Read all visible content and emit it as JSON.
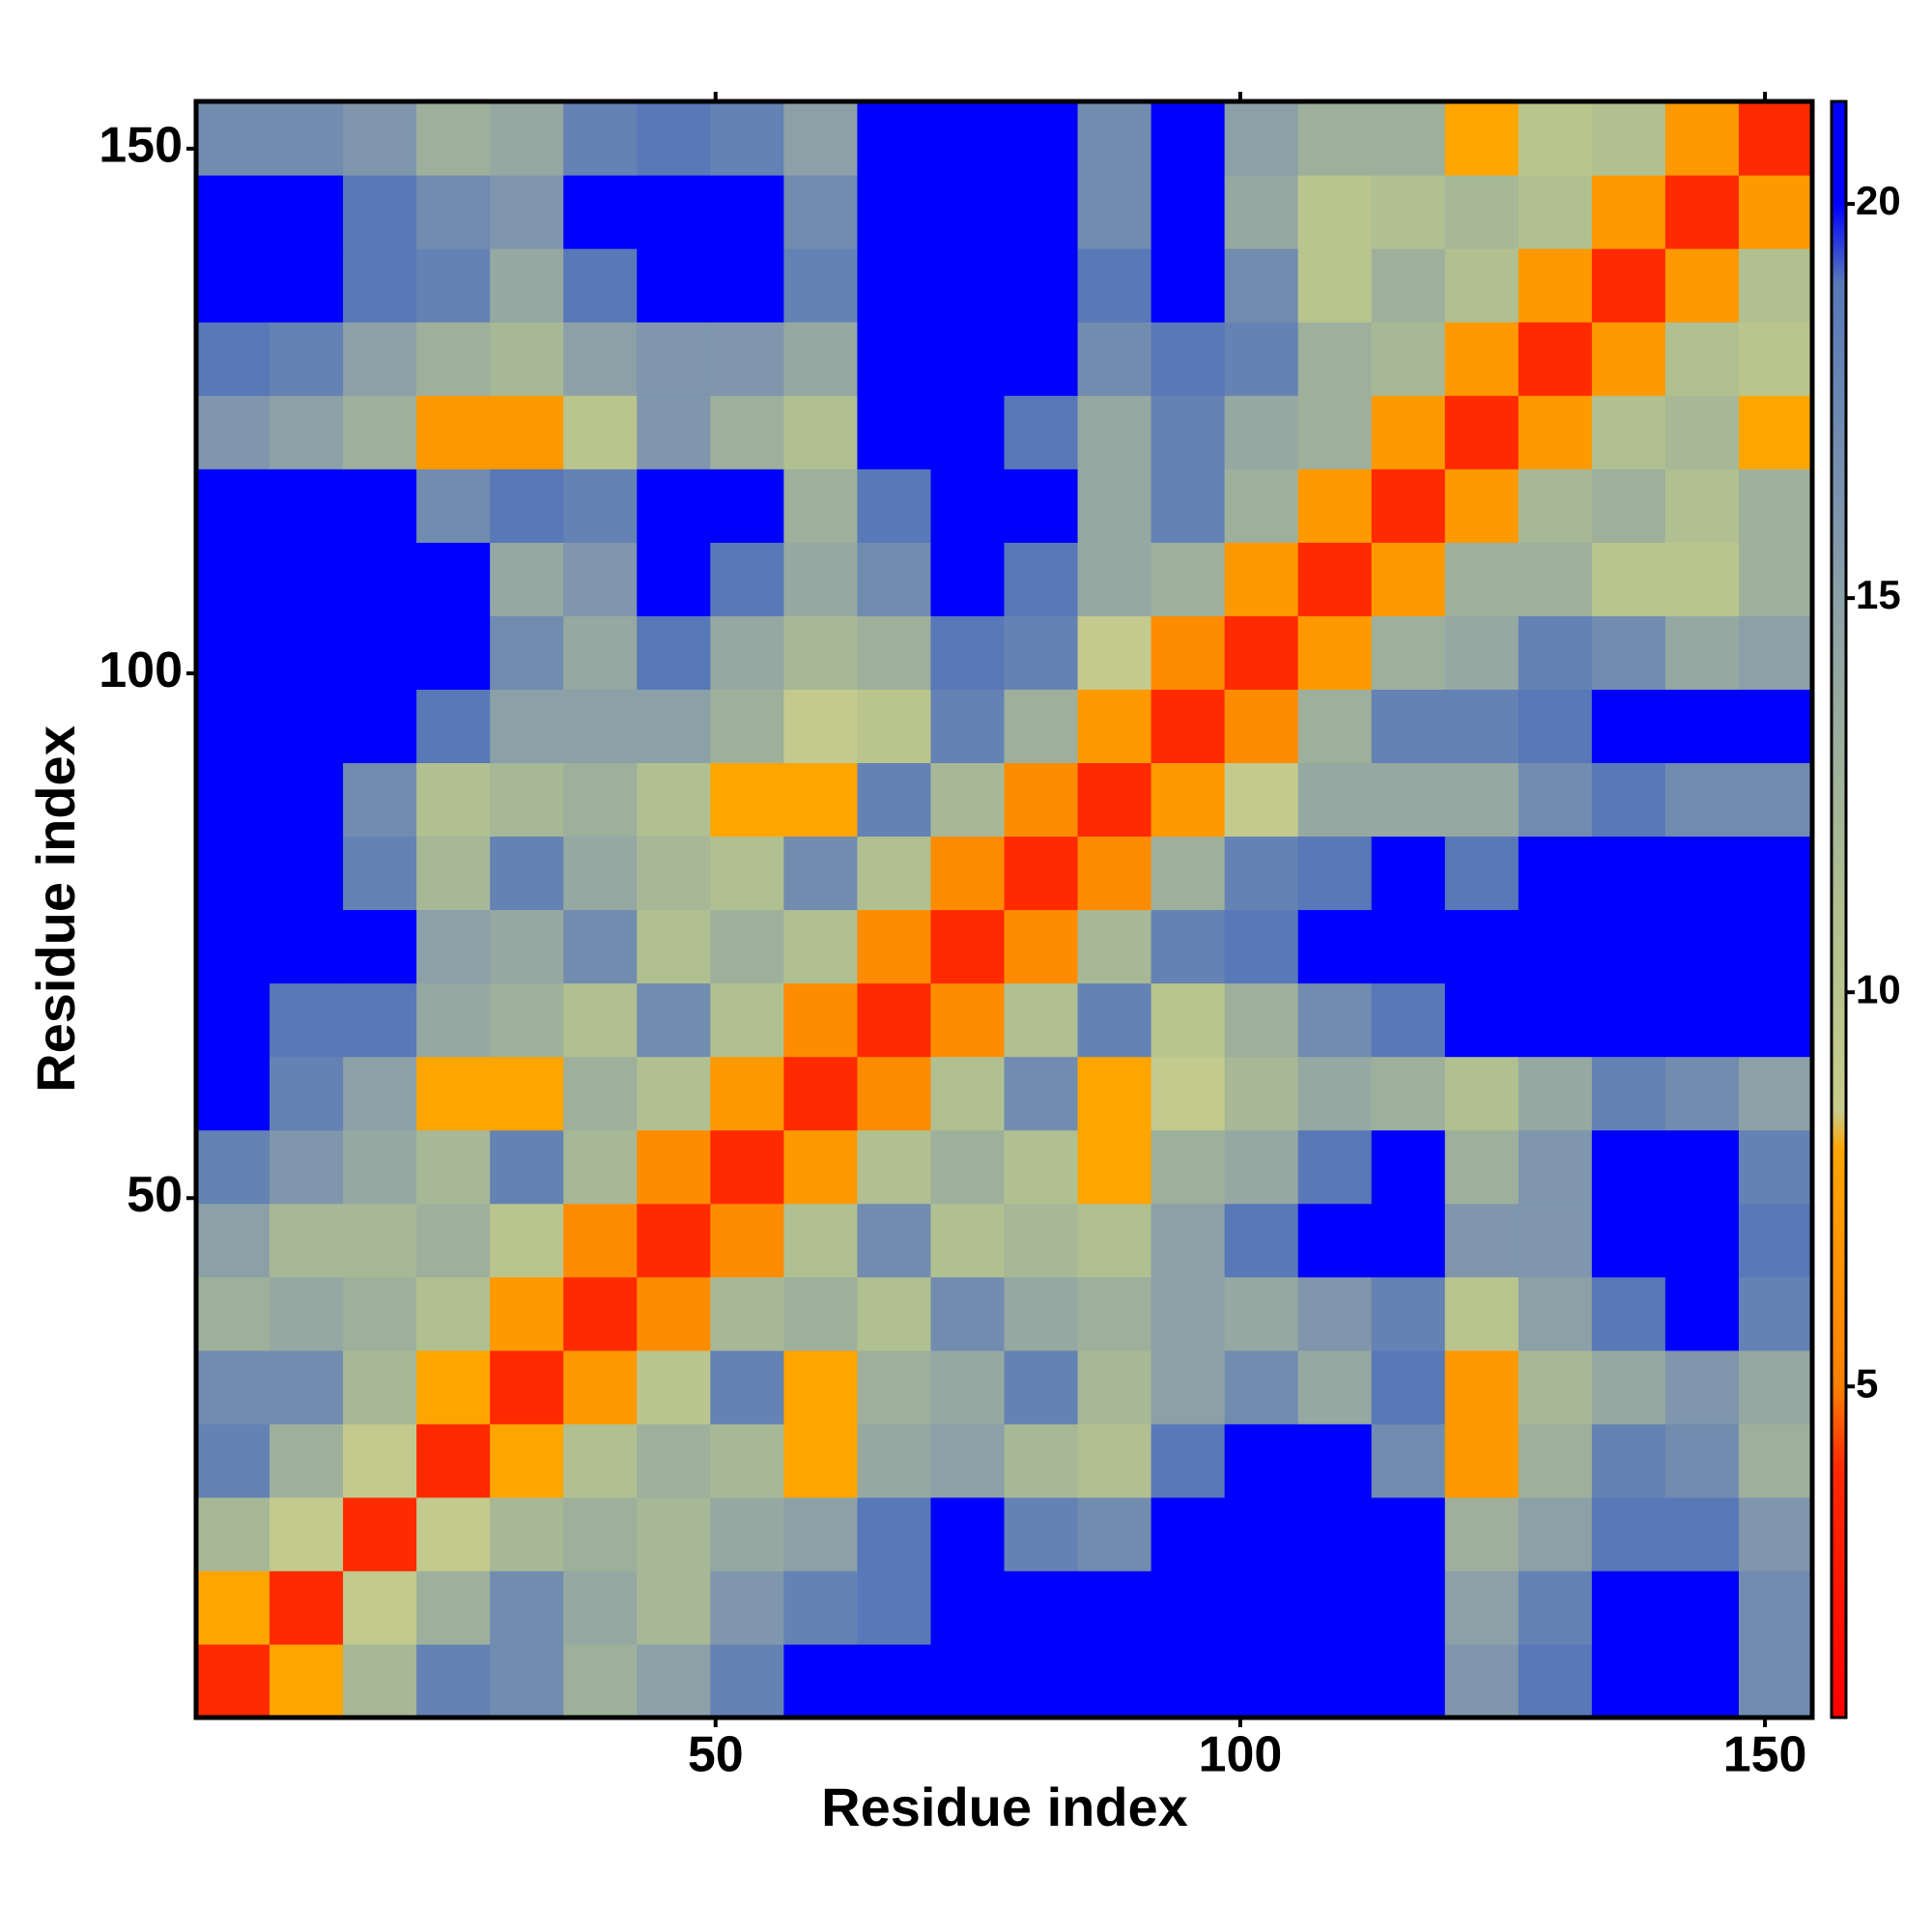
{
  "chart_data": {
    "type": "heatmap",
    "xlabel": "Residue index",
    "ylabel": "Residue index",
    "xlim": [
      0.5,
      154.5
    ],
    "ylim": [
      0.5,
      154.5
    ],
    "xticks": [
      50,
      100,
      150
    ],
    "yticks": [
      50,
      100,
      150
    ],
    "xbins": [
      0.5,
      7.5,
      14.5,
      21.5,
      28.5,
      35.5,
      42.5,
      49.5,
      56.5,
      63.5,
      70.5,
      77.5,
      84.5,
      91.5,
      98.5,
      105.5,
      112.5,
      119.5,
      126.5,
      133.5,
      140.5,
      147.5,
      154.5
    ],
    "ybins": [
      0.5,
      7.5,
      14.5,
      21.5,
      28.5,
      35.5,
      42.5,
      49.5,
      56.5,
      63.5,
      70.5,
      77.5,
      84.5,
      91.5,
      98.5,
      105.5,
      112.5,
      119.5,
      126.5,
      133.5,
      140.5,
      147.5,
      154.5
    ],
    "values": [
      [
        4,
        8,
        12,
        18,
        17,
        13,
        15,
        18,
        20,
        21,
        21,
        21,
        21,
        21,
        21,
        21,
        21,
        16,
        19,
        21,
        21,
        17
      ],
      [
        8,
        4,
        9,
        13,
        17,
        14,
        12,
        16,
        18,
        19,
        21,
        21,
        21,
        21,
        21,
        21,
        21,
        15,
        18,
        20,
        20,
        17
      ],
      [
        12,
        9,
        4,
        9,
        12,
        13,
        12,
        14,
        15,
        19,
        21,
        18,
        17,
        21,
        21,
        21,
        21,
        13,
        15,
        19,
        19,
        16
      ],
      [
        18,
        13,
        9,
        4,
        8,
        11,
        13,
        12,
        8,
        14,
        15,
        12,
        11,
        19,
        21,
        21,
        17,
        7,
        13,
        18,
        17,
        13
      ],
      [
        17,
        17,
        12,
        8,
        4,
        7,
        10,
        18,
        8,
        13,
        14,
        18,
        12,
        15,
        17,
        14,
        19,
        7,
        12,
        14,
        16,
        14
      ],
      [
        13,
        14,
        13,
        11,
        7,
        4,
        6,
        12,
        13,
        11,
        17,
        14,
        13,
        15,
        14,
        16,
        18,
        10,
        15,
        19,
        20,
        18
      ],
      [
        15,
        12,
        12,
        13,
        10,
        6,
        4,
        6,
        11,
        17,
        11,
        12,
        11,
        15,
        19,
        20,
        20,
        16,
        16,
        21,
        21,
        19
      ],
      [
        18,
        16,
        14,
        12,
        18,
        12,
        6,
        4,
        7,
        11,
        13,
        11,
        8,
        13,
        14,
        19,
        20,
        13,
        16,
        20,
        21,
        18
      ],
      [
        20,
        18,
        15,
        8,
        8,
        13,
        11,
        7,
        4,
        6,
        11,
        17,
        8,
        9,
        12,
        14,
        13,
        11,
        14,
        18,
        17,
        15
      ],
      [
        21,
        19,
        19,
        14,
        13,
        11,
        17,
        11,
        6,
        4,
        6,
        11,
        18,
        10,
        13,
        17,
        19,
        20,
        20,
        21,
        21,
        21
      ],
      [
        21,
        21,
        21,
        15,
        14,
        17,
        11,
        13,
        11,
        6,
        4,
        6,
        12,
        18,
        19,
        20,
        21,
        21,
        21,
        21,
        21,
        21
      ],
      [
        21,
        21,
        18,
        12,
        18,
        14,
        12,
        11,
        17,
        11,
        6,
        4,
        6,
        13,
        18,
        19,
        21,
        19,
        21,
        21,
        21,
        20
      ],
      [
        21,
        21,
        17,
        11,
        12,
        13,
        11,
        8,
        8,
        18,
        12,
        6,
        4,
        7,
        9,
        14,
        14,
        14,
        17,
        19,
        17,
        17
      ],
      [
        21,
        21,
        21,
        19,
        15,
        15,
        15,
        13,
        9,
        10,
        18,
        13,
        7,
        4,
        6,
        13,
        18,
        18,
        19,
        20,
        20,
        20
      ],
      [
        21,
        21,
        21,
        21,
        17,
        14,
        19,
        14,
        12,
        13,
        19,
        18,
        9,
        6,
        4,
        7,
        13,
        14,
        18,
        17,
        14,
        15
      ],
      [
        21,
        21,
        21,
        21,
        14,
        16,
        20,
        19,
        14,
        17,
        20,
        19,
        14,
        13,
        7,
        4,
        7,
        13,
        13,
        10,
        10,
        13
      ],
      [
        21,
        21,
        21,
        17,
        19,
        18,
        20,
        20,
        13,
        19,
        21,
        21,
        14,
        18,
        13,
        7,
        4,
        7,
        12,
        13,
        11,
        13
      ],
      [
        16,
        15,
        13,
        7,
        7,
        10,
        16,
        13,
        11,
        20,
        21,
        19,
        14,
        18,
        14,
        13,
        7,
        4,
        7,
        11,
        12,
        8
      ],
      [
        19,
        18,
        15,
        13,
        12,
        15,
        16,
        16,
        14,
        20,
        21,
        21,
        17,
        19,
        18,
        13,
        12,
        7,
        4,
        7,
        11,
        10
      ],
      [
        21,
        20,
        19,
        18,
        14,
        19,
        21,
        20,
        18,
        21,
        21,
        21,
        19,
        20,
        17,
        10,
        13,
        11,
        7,
        4,
        7,
        11
      ],
      [
        21,
        20,
        19,
        17,
        16,
        20,
        21,
        21,
        17,
        21,
        21,
        21,
        17,
        20,
        14,
        10,
        11,
        12,
        11,
        7,
        4,
        7
      ],
      [
        17,
        17,
        16,
        13,
        14,
        18,
        19,
        18,
        15,
        21,
        21,
        20,
        17,
        20,
        15,
        13,
        13,
        8,
        10,
        11,
        7,
        4
      ]
    ],
    "zlim": [
      0.8,
      21.3
    ],
    "zticks": [
      5,
      10,
      15,
      20
    ],
    "colorscale": [
      [
        0.8,
        "#ff0000"
      ],
      [
        4,
        "#ff2a00"
      ],
      [
        5,
        "#ff8000"
      ],
      [
        8,
        "#ffa500"
      ],
      [
        8.5,
        "#c8cc8c"
      ],
      [
        11,
        "#b0c090"
      ],
      [
        15,
        "#8ca0a8"
      ],
      [
        19,
        "#5878b8"
      ],
      [
        20,
        "#0000ff"
      ]
    ]
  }
}
